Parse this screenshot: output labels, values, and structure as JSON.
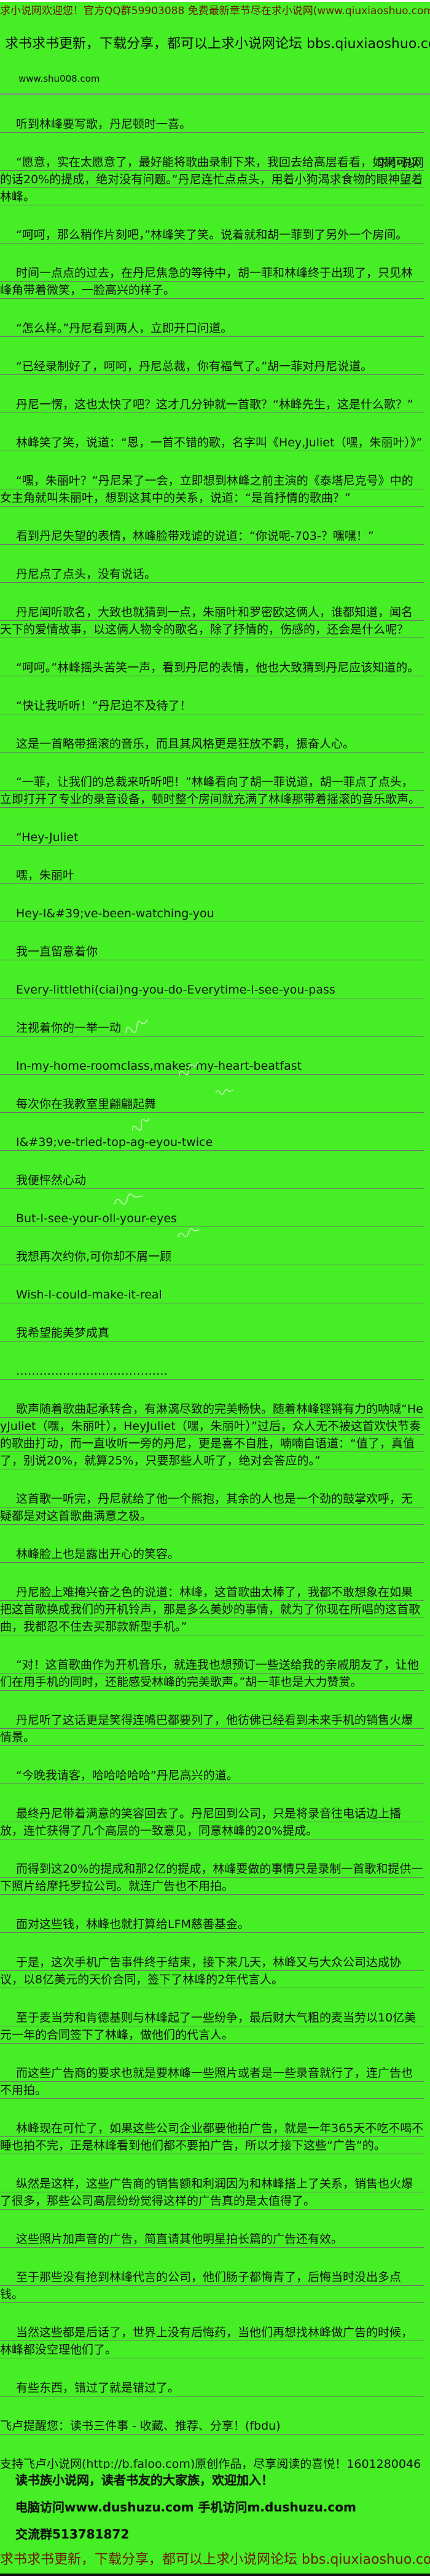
{
  "page": {
    "bg_color": "#46ee26",
    "header": {
      "line1": "求小说网欢迎您！官方QQ群59903088 免费最新章节尽在求小说网(www.qiuxiaoshuo.com)",
      "line2": "求书求书更新，下载分享，都可以上求小说网论坛 bbs.qiuxiaoshuo.com",
      "site": "www.shu008.com"
    },
    "paragraphs": [
      {
        "text": "听到林峰要写歌，丹尼顿时一喜。"
      },
      {
        "text": "“愿意，实在太愿意了，最好能将歌曲录制下来，我回去给高层看看，如果可以的话20%的提成，绝对没有问题。”丹尼连忙点点头，用着小狗渴求食物的眼神望着林峰。",
        "overlay": "求小说网"
      },
      {
        "text": "“呵呵，那么稍作片刻吧，”林峰笑了笑。说着就和胡一菲到了另外一个房间。"
      },
      {
        "text": "时间一点点的过去，在丹尼焦急的等待中，胡一菲和林峰终于出现了，只见林峰角带着微笑，一脸高兴的样子。"
      },
      {
        "text": "“怎么样。”丹尼看到两人，立即开口问道。"
      },
      {
        "text": "“已经录制好了，呵呵，丹尼总裁，你有福气了。”胡一菲对丹尼说道。"
      },
      {
        "text": "丹尼一愣，这也太快了吧？这才几分钟就一首歌？“林峰先生，这是什么歌？”"
      },
      {
        "text": "林峰笑了笑，说道：“恩，一首不错的歌，名字叫《Hey,Juliet（嘿，朱丽叶）》”"
      },
      {
        "text": "“嘿，朱丽叶？”丹尼呆了一会，立即想到林峰之前主演的《泰塔尼克号》中的女主角就叫朱丽叶，想到这其中的关系，说道：“是首抒情的歌曲？”"
      },
      {
        "text": "看到丹尼失望的表情，林峰脸带戏谑的说道：“你说呢-703-？嘿嘿！”"
      },
      {
        "text": "丹尼点了点头，没有说话。"
      },
      {
        "text": "丹尼闻听歌名，大致也就猜到一点，朱丽叶和罗密欧这俩人，谁都知道，闻名天下的爱情故事，以这俩人物令的歌名，除了抒情的，伤感的，还会是什么呢？"
      },
      {
        "text": "“呵呵。”林峰摇头苦笑一声，看到丹尼的表情，他也大致猜到丹尼应该知道的。"
      },
      {
        "text": "“快让我听听！”丹尼迫不及待了！"
      },
      {
        "text": "这是一首略带摇滚的音乐，而且其风格更是狂放不羁，振奋人心。"
      },
      {
        "text": "“一菲，让我们的总裁来听听吧！”林峰看向了胡一菲说道，胡一菲点了点头，立即打开了专业的录音设备，顿时整个房间就充满了林峰那带着摇滚的音乐歌声。"
      },
      {
        "text": "“Hey-Juliet"
      },
      {
        "text": "嘿，朱丽叶"
      },
      {
        "text": "Hey-I&#39;ve-been-watching-you"
      },
      {
        "text": "我一直留意着你"
      },
      {
        "text": "Every-littlethi(ciai)ng-you-do-Everytime-I-see-you-pass"
      },
      {
        "text": "注视着你的一举一动"
      },
      {
        "text": "In-my-home-roomclass,makes-my-heart-beatfast"
      },
      {
        "text": "每次你在我教室里翩翩起舞"
      },
      {
        "text": "I&#39;ve-tried-top-ag-eyou-twice"
      },
      {
        "text": "我便怦然心动"
      },
      {
        "text": "But-I-see-your-oll-your-eyes"
      },
      {
        "text": "我想再次约你,可你却不屑一顾"
      },
      {
        "text": "Wish-I-could-make-it-real"
      },
      {
        "text": "我希望能美梦成真"
      },
      {
        "text": "…………………………………"
      },
      {
        "text": "歌声随着歌曲起承转合，有淋漓尽致的完美畅快。随着林峰铿锵有力的呐喊“HeyJuliet（嘿，朱丽叶），HeyJuliet（嘿，朱丽叶）”过后，众人无不被这首欢快节奏的歌曲打动，而一直收听一旁的丹尼，更是喜不自胜，喃喃自语道：“值了，真值了，别说20%，就算25%，只要那些人听了，绝对会答应的。”"
      },
      {
        "text": "这首歌一听完，丹尼就给了他一个熊抱，其余的人也是一个劲的鼓掌欢呼，无疑都是对这首歌曲满意之极。"
      },
      {
        "text": "林峰脸上也是露出开心的笑容。"
      },
      {
        "text": "丹尼脸上难掩兴奋之色的说道：林峰，这首歌曲太棒了，我都不敢想象在如果把这首歌换成我们的开机铃声，那是多么美妙的事情，就为了你现在所唱的这首歌曲，我都忍不住去买那款新型手机。”"
      },
      {
        "text": "“对！这首歌曲作为开机音乐，就连我也想预订一些送给我的亲戚朋友了，让他们在用手机的同时，还能感受林峰的完美歌声。”胡一菲也是大力赞赏。"
      },
      {
        "text": "丹尼听了这话更是笑得连嘴巴都要列了，他彷佛已经看到未来手机的销售火爆情景。"
      },
      {
        "text": "“今晚我请客，哈哈哈哈哈”丹尼高兴的道。"
      },
      {
        "text": "最终丹尼带着满意的笑容回去了。丹尼回到公司，只是将录音往电话边上播放，连忙获得了几个高层的一致意见，同意林峰的20%提成。"
      },
      {
        "text": "而得到这20%的提成和那2亿的提成，林峰要做的事情只是录制一首歌和提供一下照片给摩托罗拉公司。就连广告也不用拍。"
      },
      {
        "text": "面对这些钱，林峰也就打算给LFM慈善基金。"
      },
      {
        "text": "于是，这次手机广告事件终于结束，接下来几天，林峰又与大众公司达成协议，以8亿美元的天价合同，签下了林峰的2年代言人。"
      },
      {
        "text": "至于麦当劳和肯德基则与林峰起了一些纷争，最后财大气粗的麦当劳以10亿美元一年的合同签下了林峰，做他们的代言人。"
      },
      {
        "text": "而这些广告商的要求也就是要林峰一些照片或者是一些录音就行了，连广告也不用拍。"
      },
      {
        "text": "林峰现在可忙了，如果这些公司企业都要他拍广告，就是一年365天不吃不喝不睡也拍不完，正是林峰看到他们都不要拍广告，所以才接下这些“广告”的。"
      },
      {
        "text": "纵然是这样，这些广告商的销售额和利润因为和林峰搭上了关系，销售也火爆了很多，那些公司高层纷纷觉得这样的广告真的是太值得了。"
      },
      {
        "text": "这些照片加声音的广告，简直请其他明星拍长篇的广告还有效。"
      },
      {
        "text": "至于那些没有抢到林峰代言的公司，他们肠子都悔青了，后悔当时没出多点钱。"
      },
      {
        "text": "当然这些都是后话了，世界上没有后悔药，当他们再想找林峰做广告的时候，林峰都没空理他们了。"
      },
      {
        "text": "有些东西，错过了就是错过了。"
      },
      {
        "text": "飞卢提醒您：读书三件事 - 收藏、推荐、分享！(fbdu)",
        "indent": false
      },
      {
        "text": "支持飞卢小说网(http://b.faloo.com)原创作品，尽享阅读的喜悦！160128004619",
        "indent": false
      }
    ],
    "footer": {
      "promo1": "读书族小说网，读者书友的大家族，欢迎加入！",
      "promo2": "电脑访问www.dushuzu.com 手机访问m.dushuzu.com",
      "promo3": "交流群513781872",
      "bottom": "求书求书更新，下载分享，都可以上求小说网论坛 bbs.qiuxiaoshuo.com"
    }
  }
}
